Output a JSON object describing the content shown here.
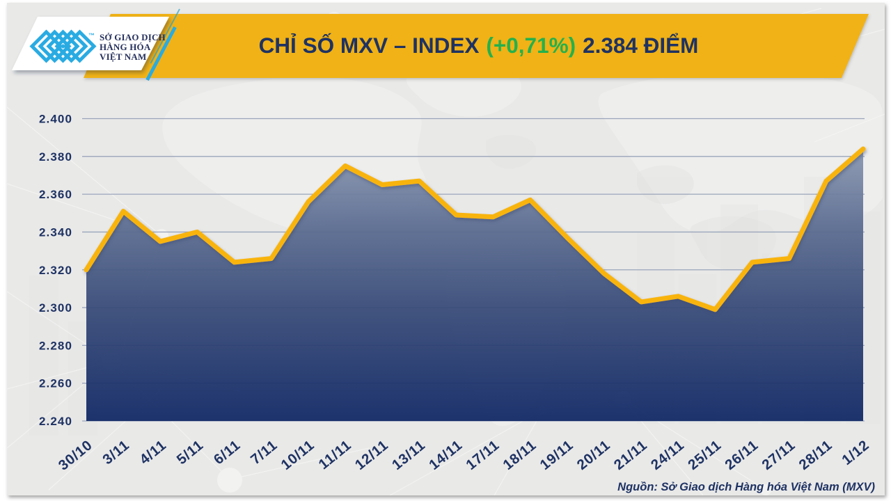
{
  "header": {
    "title_main": "CHỈ SỐ MXV – INDEX",
    "title_change": "(+0,71%)",
    "title_value": "2.384 ĐIỂM",
    "logo": {
      "line1": "SỞ GIAO DỊCH",
      "line2": "HÀNG HÓA",
      "line3": "VIỆT NAM",
      "trademark": "™"
    }
  },
  "footer": {
    "source_note": "Nguồn: Sở Giao dịch Hàng hóa Việt Nam (MXV)"
  },
  "colors": {
    "banner_yellow": "#f0b217",
    "line_yellow": "#f8b411",
    "navy": "#1e3263",
    "green": "#24b14d",
    "cyan": "#29abe2",
    "area_top": "#8997b1",
    "area_mid": "#3a4c78",
    "area_bottom": "#0d2563",
    "gridline": "#9aa5ba",
    "panel_bg": "#e9e9e8"
  },
  "chart_data": {
    "type": "area",
    "title": "CHỈ SỐ MXV – INDEX (+0,71%) 2.384 ĐIỂM",
    "xlabel": "",
    "ylabel": "",
    "ylim": [
      2.24,
      2.4
    ],
    "grid": true,
    "legend": false,
    "categories": [
      "30/10",
      "3/11",
      "4/11",
      "5/11",
      "6/11",
      "7/11",
      "10/11",
      "11/11",
      "12/11",
      "13/11",
      "14/11",
      "17/11",
      "18/11",
      "19/11",
      "20/11",
      "21/11",
      "24/11",
      "25/11",
      "26/11",
      "27/11",
      "28/11",
      "1/12"
    ],
    "values": [
      2.32,
      2.351,
      2.335,
      2.34,
      2.324,
      2.326,
      2.356,
      2.375,
      2.365,
      2.367,
      2.349,
      2.348,
      2.357,
      2.337,
      2.318,
      2.303,
      2.306,
      2.299,
      2.324,
      2.326,
      2.367,
      2.384
    ],
    "y_ticks": [
      {
        "value": 2.24,
        "label": "2.240"
      },
      {
        "value": 2.26,
        "label": "2.260"
      },
      {
        "value": 2.28,
        "label": "2.280"
      },
      {
        "value": 2.3,
        "label": "2.300"
      },
      {
        "value": 2.32,
        "label": "2.320"
      },
      {
        "value": 2.34,
        "label": "2.340"
      },
      {
        "value": 2.36,
        "label": "2.360"
      },
      {
        "value": 2.38,
        "label": "2.380"
      },
      {
        "value": 2.4,
        "label": "2.400"
      }
    ]
  }
}
